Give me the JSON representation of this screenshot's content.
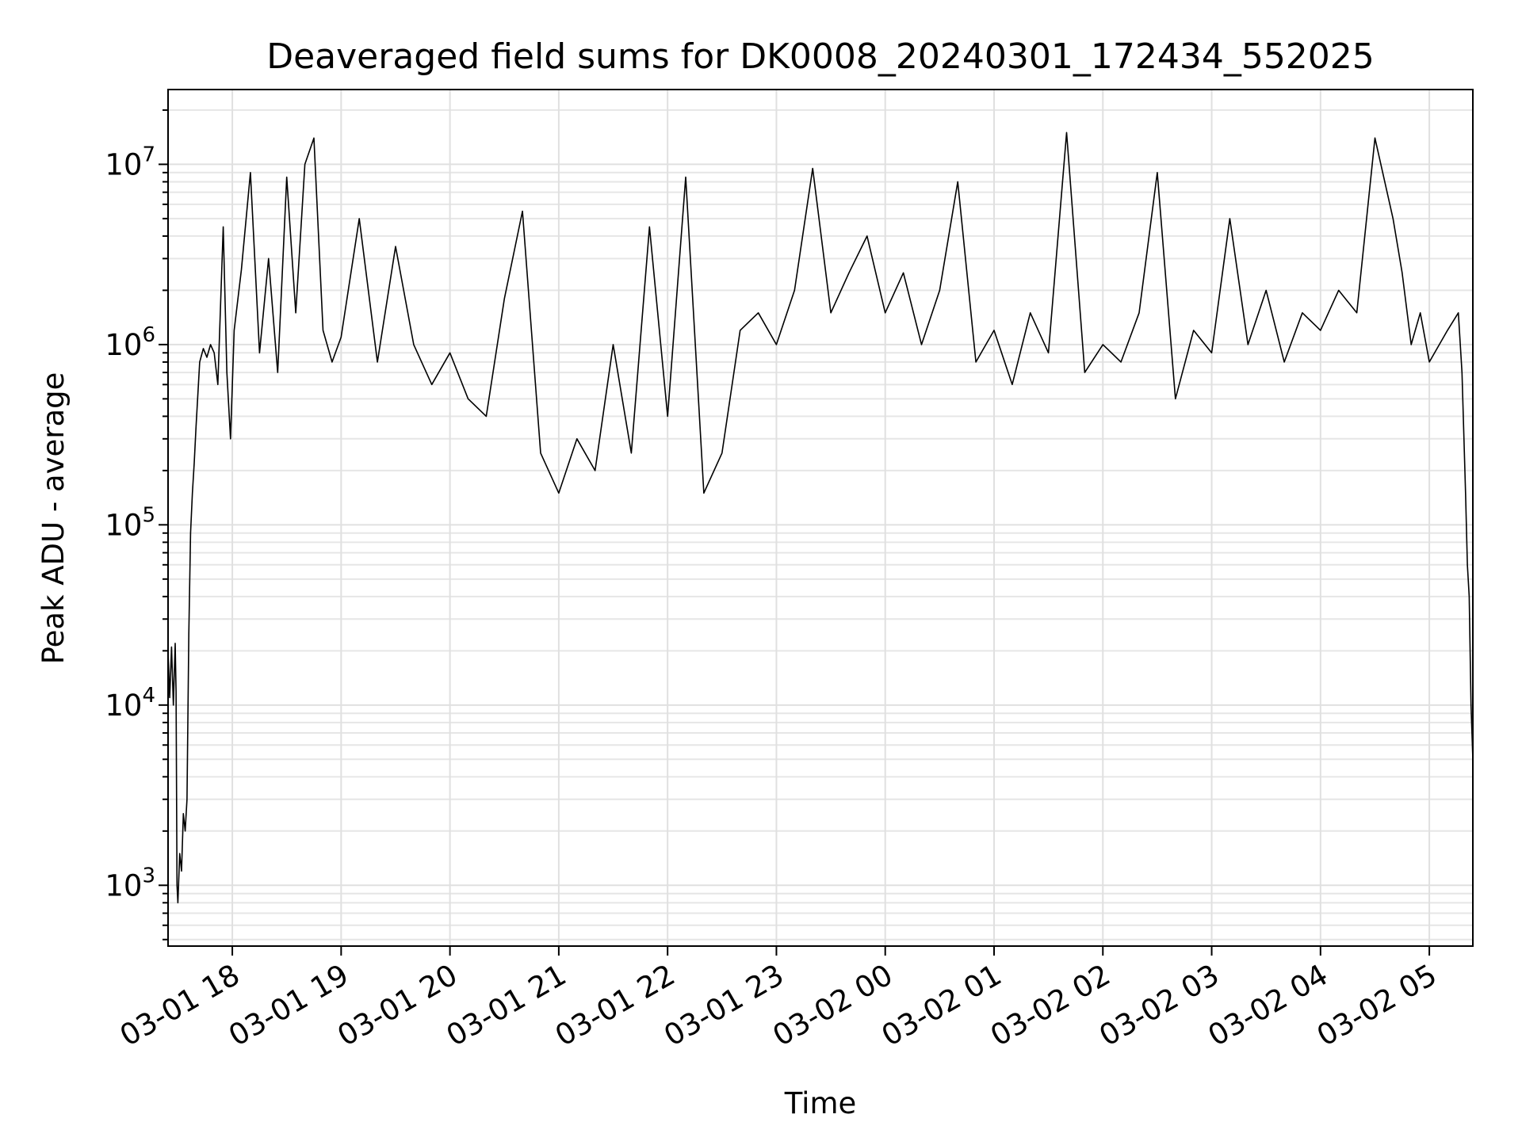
{
  "chart_data": {
    "type": "line",
    "title": "Deaveraged field sums for DK0008_20240301_172434_552025",
    "xlabel": "Time",
    "ylabel": "Peak ADU - average",
    "y_scale": "log",
    "ylim": [
      460,
      26000000
    ],
    "xlim": [
      "2024-03-01T17:24:34",
      "2024-03-02T05:24:00"
    ],
    "grid": "on (major and minor)",
    "legend": "none",
    "line_color": "#000000",
    "x_ticks": [
      {
        "value": "2024-03-01T18:00",
        "label": "03-01 18"
      },
      {
        "value": "2024-03-01T19:00",
        "label": "03-01 19"
      },
      {
        "value": "2024-03-01T20:00",
        "label": "03-01 20"
      },
      {
        "value": "2024-03-01T21:00",
        "label": "03-01 21"
      },
      {
        "value": "2024-03-01T22:00",
        "label": "03-01 22"
      },
      {
        "value": "2024-03-01T23:00",
        "label": "03-01 23"
      },
      {
        "value": "2024-03-02T00:00",
        "label": "03-02 00"
      },
      {
        "value": "2024-03-02T01:00",
        "label": "03-02 01"
      },
      {
        "value": "2024-03-02T02:00",
        "label": "03-02 02"
      },
      {
        "value": "2024-03-02T03:00",
        "label": "03-02 03"
      },
      {
        "value": "2024-03-02T04:00",
        "label": "03-02 04"
      },
      {
        "value": "2024-03-02T05:00",
        "label": "03-02 05"
      }
    ],
    "y_ticks": [
      {
        "value": 1000,
        "base": "10",
        "exp": "3"
      },
      {
        "value": 10000,
        "base": "10",
        "exp": "4"
      },
      {
        "value": 100000,
        "base": "10",
        "exp": "5"
      },
      {
        "value": 1000000,
        "base": "10",
        "exp": "6"
      },
      {
        "value": 10000000,
        "base": "10",
        "exp": "7"
      }
    ],
    "series": [
      {
        "points": [
          [
            "2024-03-01T17:24:34",
            20000
          ],
          [
            "2024-03-01T17:25:30",
            11000
          ],
          [
            "2024-03-01T17:26:30",
            21000
          ],
          [
            "2024-03-01T17:27:30",
            10000
          ],
          [
            "2024-03-01T17:28:30",
            22000
          ],
          [
            "2024-03-01T17:29:00",
            12000
          ],
          [
            "2024-03-01T17:29:30",
            1000
          ],
          [
            "2024-03-01T17:30:00",
            800
          ],
          [
            "2024-03-01T17:31:00",
            1500
          ],
          [
            "2024-03-01T17:32:00",
            1200
          ],
          [
            "2024-03-01T17:33:00",
            2500
          ],
          [
            "2024-03-01T17:34:00",
            2000
          ],
          [
            "2024-03-01T17:35:00",
            3000
          ],
          [
            "2024-03-01T17:36:00",
            25000
          ],
          [
            "2024-03-01T17:37:00",
            90000
          ],
          [
            "2024-03-01T17:38:00",
            150000
          ],
          [
            "2024-03-01T17:39:00",
            220000
          ],
          [
            "2024-03-01T17:40:00",
            350000
          ],
          [
            "2024-03-01T17:42:00",
            800000
          ],
          [
            "2024-03-01T17:44:00",
            950000
          ],
          [
            "2024-03-01T17:46:00",
            850000
          ],
          [
            "2024-03-01T17:48:00",
            1000000
          ],
          [
            "2024-03-01T17:50:00",
            900000
          ],
          [
            "2024-03-01T17:52:00",
            600000
          ],
          [
            "2024-03-01T17:55:00",
            4500000
          ],
          [
            "2024-03-01T17:57:00",
            700000
          ],
          [
            "2024-03-01T17:59:00",
            300000
          ],
          [
            "2024-03-01T18:01:00",
            1200000
          ],
          [
            "2024-03-01T18:05:00",
            2600000
          ],
          [
            "2024-03-01T18:10:00",
            9000000
          ],
          [
            "2024-03-01T18:15:00",
            900000
          ],
          [
            "2024-03-01T18:20:00",
            3000000
          ],
          [
            "2024-03-01T18:25:00",
            700000
          ],
          [
            "2024-03-01T18:30:00",
            8500000
          ],
          [
            "2024-03-01T18:35:00",
            1500000
          ],
          [
            "2024-03-01T18:40:00",
            10000000
          ],
          [
            "2024-03-01T18:45:00",
            14000000
          ],
          [
            "2024-03-01T18:50:00",
            1200000
          ],
          [
            "2024-03-01T18:55:00",
            800000
          ],
          [
            "2024-03-01T19:00:00",
            1100000
          ],
          [
            "2024-03-01T19:10:00",
            5000000
          ],
          [
            "2024-03-01T19:20:00",
            800000
          ],
          [
            "2024-03-01T19:30:00",
            3500000
          ],
          [
            "2024-03-01T19:40:00",
            1000000
          ],
          [
            "2024-03-01T19:50:00",
            600000
          ],
          [
            "2024-03-01T20:00:00",
            900000
          ],
          [
            "2024-03-01T20:10:00",
            500000
          ],
          [
            "2024-03-01T20:20:00",
            400000
          ],
          [
            "2024-03-01T20:30:00",
            1800000
          ],
          [
            "2024-03-01T20:40:00",
            5500000
          ],
          [
            "2024-03-01T20:50:00",
            250000
          ],
          [
            "2024-03-01T21:00:00",
            150000
          ],
          [
            "2024-03-01T21:10:00",
            300000
          ],
          [
            "2024-03-01T21:20:00",
            200000
          ],
          [
            "2024-03-01T21:30:00",
            1000000
          ],
          [
            "2024-03-01T21:40:00",
            250000
          ],
          [
            "2024-03-01T21:50:00",
            4500000
          ],
          [
            "2024-03-01T22:00:00",
            400000
          ],
          [
            "2024-03-01T22:10:00",
            8500000
          ],
          [
            "2024-03-01T22:20:00",
            150000
          ],
          [
            "2024-03-01T22:30:00",
            250000
          ],
          [
            "2024-03-01T22:40:00",
            1200000
          ],
          [
            "2024-03-01T22:50:00",
            1500000
          ],
          [
            "2024-03-01T23:00:00",
            1000000
          ],
          [
            "2024-03-01T23:10:00",
            2000000
          ],
          [
            "2024-03-01T23:20:00",
            9500000
          ],
          [
            "2024-03-01T23:30:00",
            1500000
          ],
          [
            "2024-03-01T23:40:00",
            2500000
          ],
          [
            "2024-03-01T23:50:00",
            4000000
          ],
          [
            "2024-03-02T00:00:00",
            1500000
          ],
          [
            "2024-03-02T00:10:00",
            2500000
          ],
          [
            "2024-03-02T00:20:00",
            1000000
          ],
          [
            "2024-03-02T00:30:00",
            2000000
          ],
          [
            "2024-03-02T00:40:00",
            8000000
          ],
          [
            "2024-03-02T00:50:00",
            800000
          ],
          [
            "2024-03-02T01:00:00",
            1200000
          ],
          [
            "2024-03-02T01:10:00",
            600000
          ],
          [
            "2024-03-02T01:20:00",
            1500000
          ],
          [
            "2024-03-02T01:30:00",
            900000
          ],
          [
            "2024-03-02T01:40:00",
            15000000
          ],
          [
            "2024-03-02T01:50:00",
            700000
          ],
          [
            "2024-03-02T02:00:00",
            1000000
          ],
          [
            "2024-03-02T02:10:00",
            800000
          ],
          [
            "2024-03-02T02:20:00",
            1500000
          ],
          [
            "2024-03-02T02:30:00",
            9000000
          ],
          [
            "2024-03-02T02:40:00",
            500000
          ],
          [
            "2024-03-02T02:50:00",
            1200000
          ],
          [
            "2024-03-02T03:00:00",
            900000
          ],
          [
            "2024-03-02T03:10:00",
            5000000
          ],
          [
            "2024-03-02T03:20:00",
            1000000
          ],
          [
            "2024-03-02T03:30:00",
            2000000
          ],
          [
            "2024-03-02T03:40:00",
            800000
          ],
          [
            "2024-03-02T03:50:00",
            1500000
          ],
          [
            "2024-03-02T04:00:00",
            1200000
          ],
          [
            "2024-03-02T04:10:00",
            2000000
          ],
          [
            "2024-03-02T04:20:00",
            1500000
          ],
          [
            "2024-03-02T04:30:00",
            14000000
          ],
          [
            "2024-03-02T04:40:00",
            5000000
          ],
          [
            "2024-03-02T04:45:00",
            2500000
          ],
          [
            "2024-03-02T04:50:00",
            1000000
          ],
          [
            "2024-03-02T04:55:00",
            1500000
          ],
          [
            "2024-03-02T05:00:00",
            800000
          ],
          [
            "2024-03-02T05:10:00",
            1200000
          ],
          [
            "2024-03-02T05:16:00",
            1500000
          ],
          [
            "2024-03-02T05:18:00",
            700000
          ],
          [
            "2024-03-02T05:20:00",
            150000
          ],
          [
            "2024-03-02T05:21:00",
            60000
          ],
          [
            "2024-03-02T05:22:00",
            40000
          ],
          [
            "2024-03-02T05:23:00",
            10000
          ],
          [
            "2024-03-02T05:24:00",
            5000
          ]
        ]
      }
    ]
  }
}
